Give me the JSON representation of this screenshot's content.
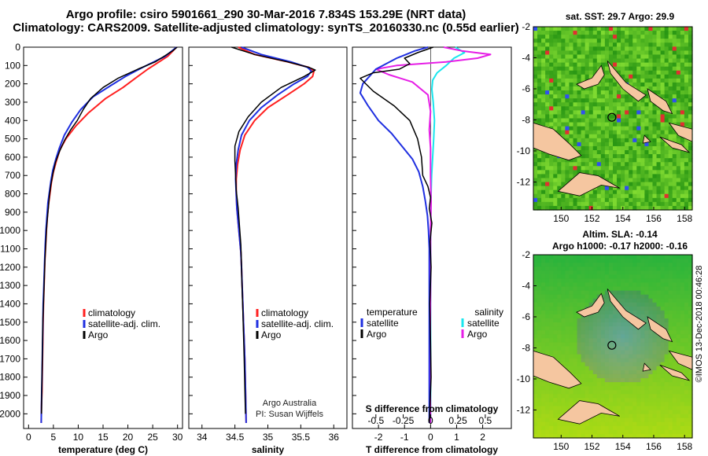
{
  "title": {
    "line1": "Argo profile: csiro 5901661_290 30-Mar-2016 7.834S 153.29E (NRT data)",
    "line2": "Climatology: CARS2009. Satellite-adjusted climatology: synTS_20160330.nc (0.55d earlier)"
  },
  "map_top": {
    "title": "sat. SST: 29.7 Argo: 29.9"
  },
  "map_bottom": {
    "title1": "Altim. SLA: -0.14",
    "title2": "Argo h1000: -0.17 h2000: -0.16"
  },
  "credit": "©IMOS 13-Dec-2018 00:46:28",
  "colors": {
    "climatology": "#ff1f1f",
    "satellite": "#1f2fe0",
    "argo": "#000000",
    "sal_satellite": "#19e6ee",
    "sal_argo": "#e61ee6"
  },
  "chart_data": [
    {
      "type": "line",
      "title": "",
      "xlabel": "temperature (deg C)",
      "ylabel": "",
      "xlim": [
        -1,
        31
      ],
      "ylim": [
        2080,
        0
      ],
      "xticks": [
        "0",
        "5",
        "10",
        "15",
        "20",
        "25",
        "30"
      ],
      "xtick_values": [
        0,
        5,
        10,
        15,
        20,
        25,
        30
      ],
      "yticks": [
        "0",
        "100",
        "200",
        "300",
        "400",
        "500",
        "600",
        "700",
        "800",
        "900",
        "1000",
        "1100",
        "1200",
        "1300",
        "1400",
        "1500",
        "1600",
        "1700",
        "1800",
        "1900",
        "2000"
      ],
      "ytick_values": [
        0,
        100,
        200,
        300,
        400,
        500,
        600,
        700,
        800,
        900,
        1000,
        1100,
        1200,
        1300,
        1400,
        1500,
        1600,
        1700,
        1800,
        1900,
        2000
      ],
      "legend": [
        "climatology",
        "satellite-adj. clim.",
        "Argo"
      ],
      "legend_position": "lower-right",
      "series": [
        {
          "name": "climatology",
          "color_key": "climatology",
          "x": [
            29.8,
            28.0,
            24.0,
            21.5,
            19.0,
            15.5,
            12.0,
            9.5,
            7.5,
            6.3,
            5.6,
            5.0,
            4.6,
            4.3,
            4.0,
            3.8,
            3.6,
            3.45,
            3.3,
            3.2,
            3.1,
            3.0,
            2.95,
            2.9,
            2.85,
            2.8,
            2.75,
            2.7,
            2.6,
            2.55
          ],
          "y": [
            0,
            50,
            120,
            170,
            220,
            280,
            360,
            430,
            500,
            560,
            620,
            680,
            740,
            800,
            860,
            920,
            1000,
            1080,
            1160,
            1240,
            1320,
            1400,
            1480,
            1560,
            1640,
            1720,
            1800,
            1880,
            1960,
            2050
          ]
        },
        {
          "name": "satellite-adj. clim.",
          "color_key": "satellite",
          "x": [
            29.8,
            27.5,
            23.0,
            19.5,
            16.5,
            13.0,
            10.5,
            8.7,
            7.2,
            6.2,
            5.5,
            4.9,
            4.5,
            4.2,
            3.9,
            3.7,
            3.5,
            3.35,
            3.25,
            3.15,
            3.05,
            2.95,
            2.9,
            2.85,
            2.8,
            2.75,
            2.7,
            2.65,
            2.6,
            2.55
          ],
          "y": [
            0,
            50,
            110,
            160,
            210,
            270,
            340,
            410,
            480,
            550,
            610,
            670,
            730,
            790,
            850,
            920,
            1000,
            1080,
            1160,
            1240,
            1320,
            1400,
            1480,
            1560,
            1640,
            1720,
            1800,
            1880,
            1960,
            2050
          ]
        },
        {
          "name": "Argo",
          "color_key": "argo",
          "x": [
            29.9,
            29.0,
            25.5,
            22.0,
            18.0,
            15.0,
            12.5,
            11.0,
            9.8,
            8.5,
            7.2,
            6.2,
            5.4,
            4.9,
            4.5,
            4.2,
            4.0,
            3.8,
            3.6,
            3.45,
            3.3,
            3.2,
            3.1,
            3.0,
            2.9,
            2.85,
            2.8,
            2.75,
            2.7,
            2.65,
            2.6
          ],
          "y": [
            0,
            20,
            80,
            120,
            170,
            220,
            280,
            340,
            400,
            450,
            510,
            570,
            630,
            690,
            750,
            810,
            870,
            930,
            1000,
            1080,
            1160,
            1240,
            1320,
            1400,
            1480,
            1560,
            1640,
            1720,
            1800,
            1900,
            2000
          ]
        }
      ]
    },
    {
      "type": "line",
      "xlabel": "salinity",
      "xlim": [
        33.8,
        36.2
      ],
      "ylim": [
        2080,
        0
      ],
      "xticks": [
        "34",
        "34.5",
        "35",
        "35.5",
        "36"
      ],
      "xtick_values": [
        34,
        34.5,
        35,
        35.5,
        36
      ],
      "legend": [
        "climatology",
        "satellite-adj. clim.",
        "Argo"
      ],
      "legend_position": "lower-right",
      "annotation": [
        "Argo Australia",
        "PI: Susan Wijffels"
      ],
      "series": [
        {
          "name": "climatology",
          "color_key": "climatology",
          "x": [
            34.55,
            34.8,
            35.3,
            35.62,
            35.7,
            35.68,
            35.55,
            35.3,
            35.0,
            34.8,
            34.65,
            34.58,
            34.54,
            34.52,
            34.52,
            34.53,
            34.55,
            34.57,
            34.59,
            34.6,
            34.61,
            34.62,
            34.63,
            34.64,
            34.65,
            34.66,
            34.67
          ],
          "y": [
            0,
            40,
            80,
            110,
            130,
            160,
            200,
            260,
            330,
            400,
            480,
            560,
            640,
            720,
            800,
            880,
            960,
            1040,
            1120,
            1200,
            1300,
            1400,
            1500,
            1600,
            1700,
            1850,
            2050
          ]
        },
        {
          "name": "satellite-adj. clim.",
          "color_key": "satellite",
          "x": [
            34.6,
            34.9,
            35.35,
            35.6,
            35.66,
            35.6,
            35.4,
            35.15,
            34.9,
            34.72,
            34.6,
            34.55,
            34.52,
            34.51,
            34.52,
            34.53,
            34.55,
            34.57,
            34.59,
            34.6,
            34.61,
            34.62,
            34.63,
            34.64,
            34.65,
            34.66,
            34.67
          ],
          "y": [
            0,
            40,
            80,
            110,
            130,
            160,
            200,
            260,
            330,
            400,
            480,
            560,
            640,
            720,
            800,
            880,
            960,
            1040,
            1120,
            1200,
            1300,
            1400,
            1500,
            1600,
            1700,
            1850,
            2050
          ]
        },
        {
          "name": "Argo",
          "color_key": "argo",
          "x": [
            34.45,
            34.8,
            35.3,
            35.62,
            35.72,
            35.55,
            35.2,
            34.9,
            34.7,
            34.56,
            34.5,
            34.5,
            34.51,
            34.52,
            34.55,
            34.57,
            34.59,
            34.6,
            34.61,
            34.62,
            34.63,
            34.64,
            34.65,
            34.66
          ],
          "y": [
            0,
            40,
            80,
            110,
            125,
            160,
            220,
            300,
            380,
            460,
            540,
            620,
            700,
            780,
            880,
            980,
            1080,
            1200,
            1320,
            1440,
            1560,
            1700,
            1850,
            2000
          ]
        }
      ]
    },
    {
      "type": "line",
      "xlabel": "T difference from climatology",
      "xlabel2": "S difference from climatology",
      "xlim": [
        -3,
        3.1
      ],
      "ylim": [
        2080,
        0
      ],
      "xticks": [
        "-2",
        "-1",
        "0",
        "1",
        "2"
      ],
      "xtick_values": [
        -2,
        -1,
        0,
        1,
        2
      ],
      "xticks2": [
        "-0.5",
        "-0.25",
        "0",
        "0.25",
        "0.5"
      ],
      "xtick2_values": [
        -0.5,
        -0.25,
        0,
        0.25,
        0.5
      ],
      "legend_left_title": "temperature",
      "legend_left": [
        "satellite",
        "Argo"
      ],
      "legend_right_title": "salinity",
      "legend_right": [
        "satellite",
        "Argo"
      ],
      "series": [
        {
          "name": "T satellite",
          "color_key": "satellite",
          "x": [
            -0.1,
            -0.6,
            -1.3,
            -2.1,
            -2.6,
            -2.7,
            -2.4,
            -2.0,
            -1.5,
            -1.1,
            -0.7,
            -0.45,
            -0.3,
            -0.2,
            -0.12,
            -0.08,
            -0.05,
            -0.05,
            -0.05,
            -0.05,
            -0.05,
            -0.05
          ],
          "y": [
            0,
            20,
            60,
            120,
            200,
            250,
            320,
            400,
            470,
            540,
            610,
            680,
            760,
            840,
            920,
            1000,
            1100,
            1300,
            1500,
            1700,
            1900,
            2050
          ]
        },
        {
          "name": "T Argo",
          "color_key": "argo",
          "x": [
            0.1,
            -0.5,
            -1.0,
            -0.8,
            -1.2,
            -2.2,
            -2.7,
            -2.2,
            -1.4,
            -0.8,
            -0.5,
            -0.35,
            -0.3,
            -0.1,
            0.0,
            -0.05,
            0.05,
            -0.02,
            0.02,
            -0.03,
            0.0,
            0.02,
            -0.02,
            -0.05
          ],
          "y": [
            0,
            30,
            60,
            90,
            120,
            140,
            170,
            240,
            320,
            400,
            500,
            600,
            700,
            760,
            820,
            880,
            960,
            1060,
            1200,
            1400,
            1600,
            1800,
            1950,
            2050
          ]
        },
        {
          "name": "S satellite",
          "color_key": "sal_satellite",
          "x": [
            0.95,
            1.3,
            0.9,
            0.6,
            0.25,
            0.08,
            0.05,
            0.1,
            0.15,
            0.12,
            0.08,
            0.04,
            0.02,
            0.01,
            0.0,
            0.0,
            0.0,
            0.0,
            0.0
          ],
          "y": [
            0,
            30,
            60,
            100,
            140,
            180,
            230,
            300,
            400,
            500,
            600,
            700,
            800,
            900,
            1000,
            1200,
            1500,
            1800,
            2050
          ]
        },
        {
          "name": "S Argo",
          "color_key": "sal_argo",
          "x": [
            0.5,
            1.2,
            2.3,
            1.8,
            0.6,
            -1.3,
            -2.1,
            -1.6,
            -0.7,
            -0.1,
            0.0,
            -0.05,
            0.0,
            0.0,
            0.02,
            0.0,
            0.0,
            -0.02,
            0.0
          ],
          "y": [
            0,
            20,
            40,
            60,
            80,
            100,
            120,
            150,
            190,
            260,
            350,
            450,
            550,
            700,
            850,
            1000,
            1300,
            1700,
            2050
          ]
        }
      ]
    },
    {
      "type": "heatmap",
      "title": "sat. SST: 29.7 Argo: 29.9",
      "xlim": [
        148.2,
        158.5
      ],
      "ylim": [
        -13.8,
        -2
      ],
      "xticks": [
        "150",
        "152",
        "154",
        "156",
        "158"
      ],
      "xtick_values": [
        150,
        152,
        154,
        156,
        158
      ],
      "yticks": [
        "-2",
        "-4",
        "-6",
        "-8",
        "-10",
        "-12"
      ],
      "ytick_values": [
        -2,
        -4,
        -6,
        -8,
        -10,
        -12
      ],
      "marker": {
        "lon": 153.29,
        "lat": -7.834
      }
    },
    {
      "type": "heatmap",
      "title": "Altim. SLA: -0.14",
      "xlim": [
        148.2,
        158.5
      ],
      "ylim": [
        -13.8,
        -2
      ],
      "xticks": [
        "150",
        "152",
        "154",
        "156",
        "158"
      ],
      "xtick_values": [
        150,
        152,
        154,
        156,
        158
      ],
      "yticks": [
        "-2",
        "-4",
        "-6",
        "-8",
        "-10",
        "-12"
      ],
      "ytick_values": [
        -2,
        -4,
        -6,
        -8,
        -10,
        -12
      ],
      "marker": {
        "lon": 153.29,
        "lat": -7.834
      }
    }
  ]
}
